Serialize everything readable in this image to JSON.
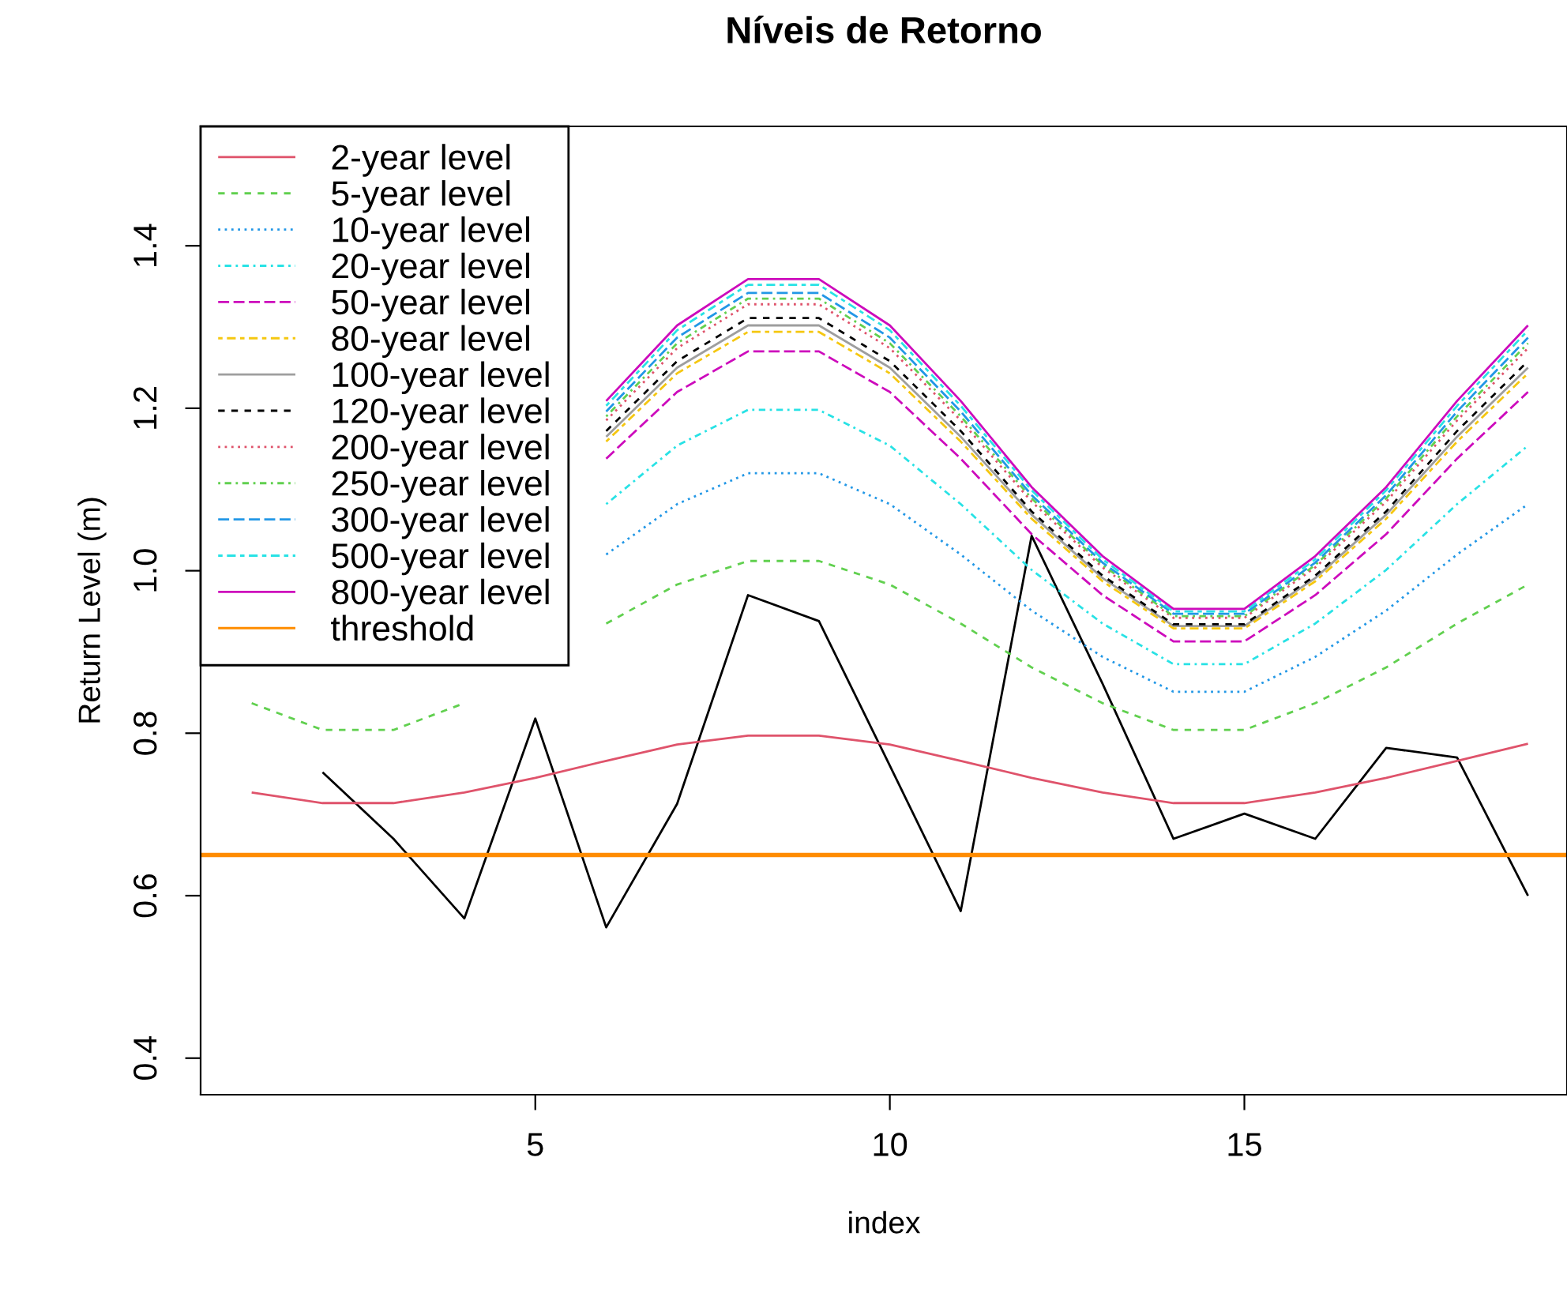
{
  "chart_data": {
    "type": "line",
    "title": "Níveis de Retorno",
    "xlabel": "index",
    "ylabel": "Return Level (m)",
    "x": [
      1,
      2,
      3,
      4,
      5,
      6,
      7,
      8,
      9,
      10,
      11,
      12,
      13,
      14,
      15,
      16,
      17,
      18,
      19
    ],
    "xlim": [
      0.28,
      19.55
    ],
    "xticks": [
      5,
      10,
      15
    ],
    "ylim": [
      0.355,
      1.547
    ],
    "yticks": [
      0.4,
      0.6,
      0.8,
      {
        "value": 1,
        "label": "1.0"
      },
      1.2,
      1.4
    ],
    "grid": false,
    "legend": "top left",
    "series": [
      {
        "color": "#000000",
        "line_style": "solid",
        "values": [
          null,
          0.752,
          0.67,
          0.572,
          0.818,
          0.561,
          0.713,
          0.97,
          0.938,
          0.76,
          0.581,
          1.043,
          0.861,
          0.67,
          0.701,
          0.67,
          0.782,
          0.77,
          0.6
        ]
      },
      {
        "name": "2-year level",
        "color": "#DF536B",
        "line_style": "solid",
        "values": [
          0.727,
          0.714,
          0.714,
          0.727,
          0.745,
          0.766,
          0.786,
          0.797,
          0.797,
          0.786,
          0.766,
          0.745,
          0.727,
          0.714,
          0.714,
          0.727,
          0.745,
          0.766,
          0.787
        ]
      },
      {
        "name": "5-year level",
        "color": "#61D04F",
        "line_style": "dashed",
        "values": [
          0.837,
          0.804,
          0.804,
          0.837,
          null,
          0.935,
          0.983,
          1.012,
          1.012,
          0.983,
          0.935,
          0.881,
          0.837,
          0.804,
          0.804,
          0.837,
          0.881,
          0.935,
          0.983
        ]
      },
      {
        "name": "10-year level",
        "color": "#2297E6",
        "line_style": "dotted",
        "values": [
          null,
          null,
          null,
          null,
          null,
          1.02,
          1.082,
          1.12,
          1.12,
          1.082,
          1.02,
          0.951,
          0.894,
          0.851,
          0.851,
          0.894,
          0.951,
          1.02,
          1.082
        ]
      },
      {
        "name": "20-year level",
        "color": "#28E2E5",
        "line_style": "dashdot",
        "values": [
          null,
          null,
          null,
          null,
          null,
          1.082,
          1.154,
          1.198,
          1.198,
          1.154,
          1.082,
          1.001,
          0.935,
          0.885,
          0.885,
          0.935,
          1.001,
          1.082,
          1.154
        ]
      },
      {
        "name": "50-year level",
        "color": "#CD0BBC",
        "line_style": "longdash",
        "values": [
          null,
          null,
          null,
          null,
          null,
          1.138,
          1.22,
          1.27,
          1.27,
          1.22,
          1.138,
          1.045,
          0.97,
          0.913,
          0.913,
          0.97,
          1.045,
          1.138,
          1.22
        ]
      },
      {
        "name": "80-year level",
        "color": "#F5C710",
        "line_style": "twodash",
        "values": [
          null,
          null,
          null,
          null,
          null,
          1.159,
          1.243,
          1.294,
          1.294,
          1.243,
          1.159,
          1.064,
          0.987,
          0.929,
          0.929,
          0.987,
          1.064,
          1.159,
          1.243
        ]
      },
      {
        "name": "100-year level",
        "color": "#9E9E9E",
        "line_style": "solid",
        "values": [
          null,
          null,
          null,
          null,
          null,
          1.165,
          1.25,
          1.302,
          1.302,
          1.25,
          1.165,
          1.069,
          0.991,
          0.932,
          0.932,
          0.991,
          1.069,
          1.165,
          1.25
        ]
      },
      {
        "name": "120-year level",
        "color": "#000000",
        "line_style": "dashed",
        "values": [
          null,
          null,
          null,
          null,
          null,
          1.172,
          1.258,
          1.311,
          1.311,
          1.258,
          1.172,
          1.073,
          0.994,
          0.934,
          0.934,
          0.994,
          1.073,
          1.172,
          1.258
        ]
      },
      {
        "name": "200-year level",
        "color": "#DF536B",
        "line_style": "dotted",
        "values": [
          null,
          null,
          null,
          null,
          null,
          1.185,
          1.274,
          1.328,
          1.328,
          1.274,
          1.185,
          1.085,
          1.004,
          0.942,
          0.942,
          1.004,
          1.085,
          1.185,
          1.274
        ]
      },
      {
        "name": "250-year level",
        "color": "#61D04F",
        "line_style": "dashdot",
        "values": [
          null,
          null,
          null,
          null,
          null,
          1.19,
          1.28,
          1.335,
          1.335,
          1.28,
          1.19,
          1.089,
          1.007,
          0.944,
          0.944,
          1.007,
          1.089,
          1.19,
          1.28
        ]
      },
      {
        "name": "300-year level",
        "color": "#2297E6",
        "line_style": "longdash",
        "values": [
          null,
          null,
          null,
          null,
          null,
          1.196,
          1.287,
          1.342,
          1.342,
          1.287,
          1.196,
          1.093,
          1.01,
          0.947,
          0.947,
          1.01,
          1.093,
          1.196,
          1.287
        ]
      },
      {
        "name": "500-year level",
        "color": "#28E2E5",
        "line_style": "twodash",
        "values": [
          null,
          null,
          null,
          null,
          null,
          1.203,
          1.296,
          1.352,
          1.352,
          1.296,
          1.203,
          1.099,
          1.014,
          0.95,
          0.95,
          1.014,
          1.099,
          1.203,
          1.296
        ]
      },
      {
        "name": "800-year level",
        "color": "#CD0BBC",
        "line_style": "solid",
        "values": [
          null,
          null,
          null,
          null,
          null,
          1.209,
          1.302,
          1.359,
          1.359,
          1.302,
          1.209,
          1.103,
          1.018,
          0.953,
          0.953,
          1.018,
          1.103,
          1.209,
          1.302
        ]
      }
    ],
    "ref_lines": [
      {
        "axis": "y",
        "value": 0.65,
        "label": "threshold",
        "color": "#FF8C00",
        "line_style": "solid"
      }
    ]
  }
}
